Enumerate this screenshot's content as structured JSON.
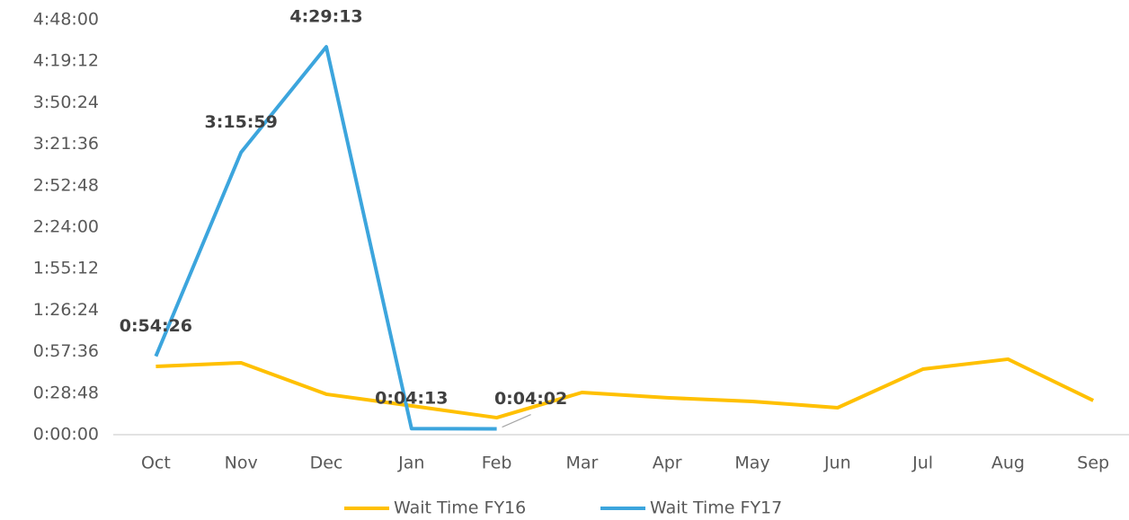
{
  "chart_data": {
    "type": "line",
    "categories": [
      "Oct",
      "Nov",
      "Dec",
      "Jan",
      "Feb",
      "Mar",
      "Apr",
      "May",
      "Jun",
      "Jul",
      "Aug",
      "Sep"
    ],
    "series": [
      {
        "name": "Wait Time FY16",
        "color": "#FFC000",
        "values": [
          47.4,
          49.9,
          28.1,
          20.0,
          11.8,
          29.3,
          25.6,
          23.1,
          18.7,
          45.5,
          52.4,
          23.7
        ]
      },
      {
        "name": "Wait Time FY17",
        "color": "#3CA5DD",
        "values": [
          54.4333,
          195.9833,
          269.2167,
          4.2167,
          4.0333,
          null,
          null,
          null,
          null,
          null,
          null,
          null
        ],
        "value_labels": [
          "0:54:26",
          "3:15:59",
          "4:29:13",
          "0:04:13",
          "0:04:02",
          null,
          null,
          null,
          null,
          null,
          null,
          null
        ]
      }
    ],
    "ylim": [
      0,
      288
    ],
    "yticks": [
      {
        "value": 0,
        "label": "0:00:00"
      },
      {
        "value": 28.8,
        "label": "0:28:48"
      },
      {
        "value": 57.6,
        "label": "0:57:36"
      },
      {
        "value": 86.4,
        "label": "1:26:24"
      },
      {
        "value": 115.2,
        "label": "1:55:12"
      },
      {
        "value": 144,
        "label": "2:24:00"
      },
      {
        "value": 172.8,
        "label": "2:52:48"
      },
      {
        "value": 201.6,
        "label": "3:21:36"
      },
      {
        "value": 230.4,
        "label": "3:50:24"
      },
      {
        "value": 259.2,
        "label": "4:19:12"
      },
      {
        "value": 288,
        "label": "4:48:00"
      }
    ],
    "grid": false,
    "legend": "bottom"
  }
}
